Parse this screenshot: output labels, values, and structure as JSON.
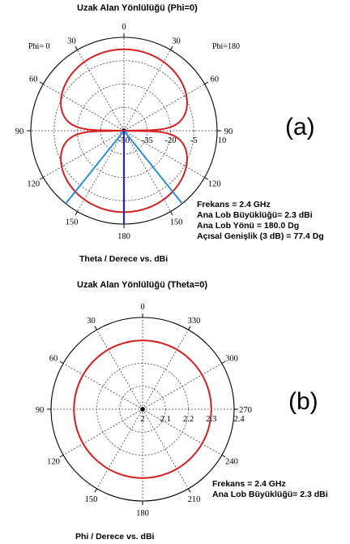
{
  "chart_data": [
    {
      "type": "polar",
      "panel_label": "(a)",
      "title": "Uzak Alan Yönlülüğü (Phi=0)",
      "left_label": "Phi=  0",
      "right_label": "Phi=180",
      "angle_ticks": [
        {
          "label": "0",
          "angle": 0
        },
        {
          "label": "30",
          "angle": 30
        },
        {
          "label": "60",
          "angle": 60
        },
        {
          "label": "90",
          "angle": 90
        },
        {
          "label": "120",
          "angle": 120
        },
        {
          "label": "150",
          "angle": 150
        },
        {
          "label": "180",
          "angle": 180
        },
        {
          "label": "150",
          "angle": 210
        },
        {
          "label": "120",
          "angle": 240
        },
        {
          "label": "90",
          "angle": 270
        },
        {
          "label": "60",
          "angle": 300
        },
        {
          "label": "30",
          "angle": 330
        }
      ],
      "radial_ticks": [
        "-50",
        "-35",
        "-20",
        "-5",
        "10"
      ],
      "radial_range": [
        -50,
        10
      ],
      "pattern": "dipole",
      "peak_dbi": 2.3,
      "main_lobe_direction_deg": 180.0,
      "beamwidth_lines_deg": [
        141.3,
        218.7
      ],
      "info": [
        "Frekans = 2.4 GHz",
        "Ana Lob Büyüklüğü= 2.3 dBi",
        "Ana Lob Yönü = 180.0 Dg",
        "Açısal Genişlik (3 dB) = 77.4 Dg"
      ],
      "footer": "Theta / Derece vs. dBi"
    },
    {
      "type": "polar",
      "panel_label": "(b)",
      "title": "Uzak Alan Yönlülüğü (Theta=0)",
      "angle_ticks": [
        {
          "label": "0",
          "angle": 0
        },
        {
          "label": "30",
          "angle": 330
        },
        {
          "label": "60",
          "angle": 300
        },
        {
          "label": "90",
          "angle": 270
        },
        {
          "label": "120",
          "angle": 240
        },
        {
          "label": "150",
          "angle": 210
        },
        {
          "label": "180",
          "angle": 180
        },
        {
          "label": "210",
          "angle": 150
        },
        {
          "label": "240",
          "angle": 120
        },
        {
          "label": "270",
          "angle": 90
        },
        {
          "label": "300",
          "angle": 60
        },
        {
          "label": "330",
          "angle": 30
        }
      ],
      "radial_ticks": [
        "2",
        "2.1",
        "2.2",
        "2.3",
        "2.4"
      ],
      "radial_range": [
        2.0,
        2.4
      ],
      "pattern": "omni",
      "constant_dbi": 2.3,
      "info": [
        "Frekans = 2.4 GHz",
        "Ana Lob Büyüklüğü= 2.3 dBi"
      ],
      "footer": "Phi / Derece vs. dBi"
    }
  ]
}
